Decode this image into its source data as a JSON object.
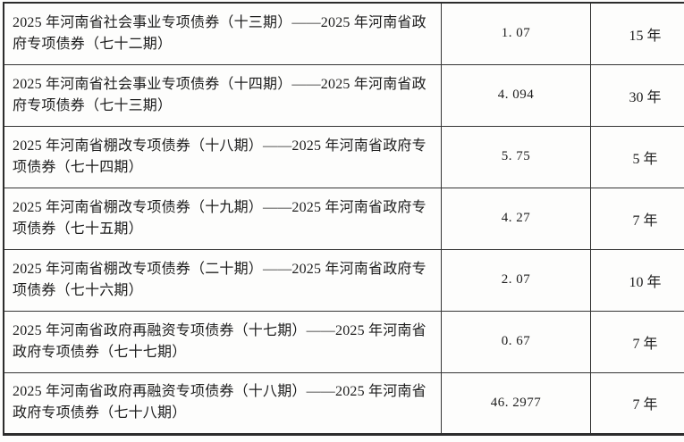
{
  "colors": {
    "page_background": "#fdfdfc",
    "border": "#2c2c2c",
    "text": "#1d1d1d"
  },
  "table": {
    "rows": [
      {
        "bond_name": "2025 年河南省社会事业专项债券（十三期）——2025 年河南省政府专项债券（七十二期）",
        "amount": "1. 07",
        "term": "15 年"
      },
      {
        "bond_name": "2025 年河南省社会事业专项债券（十四期）——2025 年河南省政府专项债券（七十三期）",
        "amount": "4. 094",
        "term": "30 年"
      },
      {
        "bond_name": "2025 年河南省棚改专项债券（十八期）——2025 年河南省政府专项债券（七十四期）",
        "amount": "5. 75",
        "term": "5 年"
      },
      {
        "bond_name": "2025 年河南省棚改专项债券（十九期）——2025 年河南省政府专项债券（七十五期）",
        "amount": "4. 27",
        "term": "7 年"
      },
      {
        "bond_name": "2025 年河南省棚改专项债券（二十期）——2025 年河南省政府专项债券（七十六期）",
        "amount": "2. 07",
        "term": "10 年"
      },
      {
        "bond_name": "2025 年河南省政府再融资专项债券（十七期）——2025 年河南省政府专项债券（七十七期）",
        "amount": "0. 67",
        "term": "7 年"
      },
      {
        "bond_name": "2025 年河南省政府再融资专项债券（十八期）——2025 年河南省政府专项债券（七十八期）",
        "amount": "46. 2977",
        "term": "7 年"
      }
    ]
  }
}
